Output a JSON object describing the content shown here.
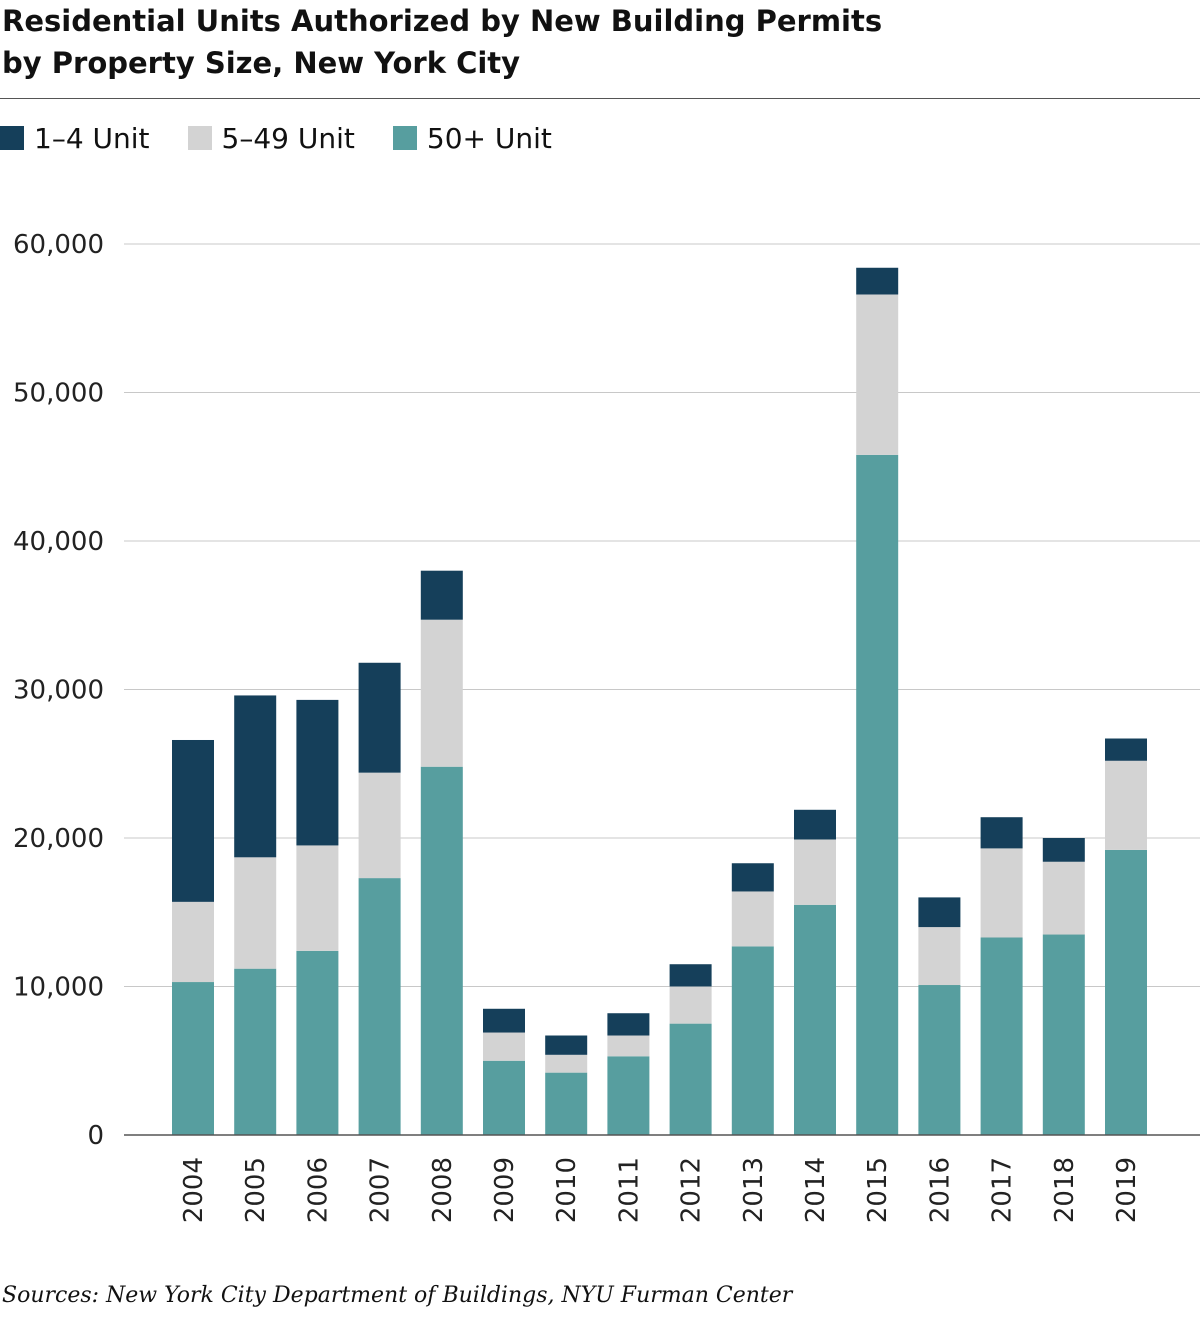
{
  "title_line1": "Residential Units Authorized by New Building Permits",
  "title_line2": "by Property Size, New York City",
  "source": "Sources: New York City Department of Buildings, NYU Furman Center",
  "colors": {
    "units_1_4": "#153f5a",
    "units_5_49": "#d3d3d3",
    "units_50_plus": "#579e9f",
    "grid": "#c8c8c8",
    "axis": "#555555"
  },
  "chart_data": {
    "type": "bar",
    "stacked": true,
    "categories": [
      "2004",
      "2005",
      "2006",
      "2007",
      "2008",
      "2009",
      "2010",
      "2011",
      "2012",
      "2013",
      "2014",
      "2015",
      "2016",
      "2017",
      "2018",
      "2019"
    ],
    "series": [
      {
        "name": "50+ Unit",
        "color": "#579e9f",
        "values": [
          10300,
          11200,
          12400,
          17300,
          24800,
          5000,
          4200,
          5300,
          7500,
          12700,
          15500,
          45800,
          10100,
          13300,
          13500,
          19200
        ]
      },
      {
        "name": "5–49 Unit",
        "color": "#d3d3d3",
        "values": [
          5400,
          7500,
          7100,
          7100,
          9900,
          1900,
          1200,
          1400,
          2500,
          3700,
          4400,
          10800,
          3900,
          6000,
          4900,
          6000
        ]
      },
      {
        "name": "1–4 Unit",
        "color": "#153f5a",
        "values": [
          10900,
          10900,
          9800,
          7400,
          3300,
          1600,
          1300,
          1500,
          1500,
          1900,
          2000,
          1800,
          2000,
          2100,
          1600,
          1500
        ]
      }
    ],
    "legend": [
      "1–4 Unit",
      "5–49 Unit",
      "50+ Unit"
    ],
    "legend_position": "top-left",
    "ylim": [
      0,
      60000
    ],
    "yticks": [
      0,
      10000,
      20000,
      30000,
      40000,
      50000,
      60000
    ],
    "ytick_labels": [
      "0",
      "10,000",
      "20,000",
      "30,000",
      "40,000",
      "50,000",
      "60,000"
    ],
    "xlabel": "",
    "ylabel": "",
    "grid": "horizontal"
  }
}
